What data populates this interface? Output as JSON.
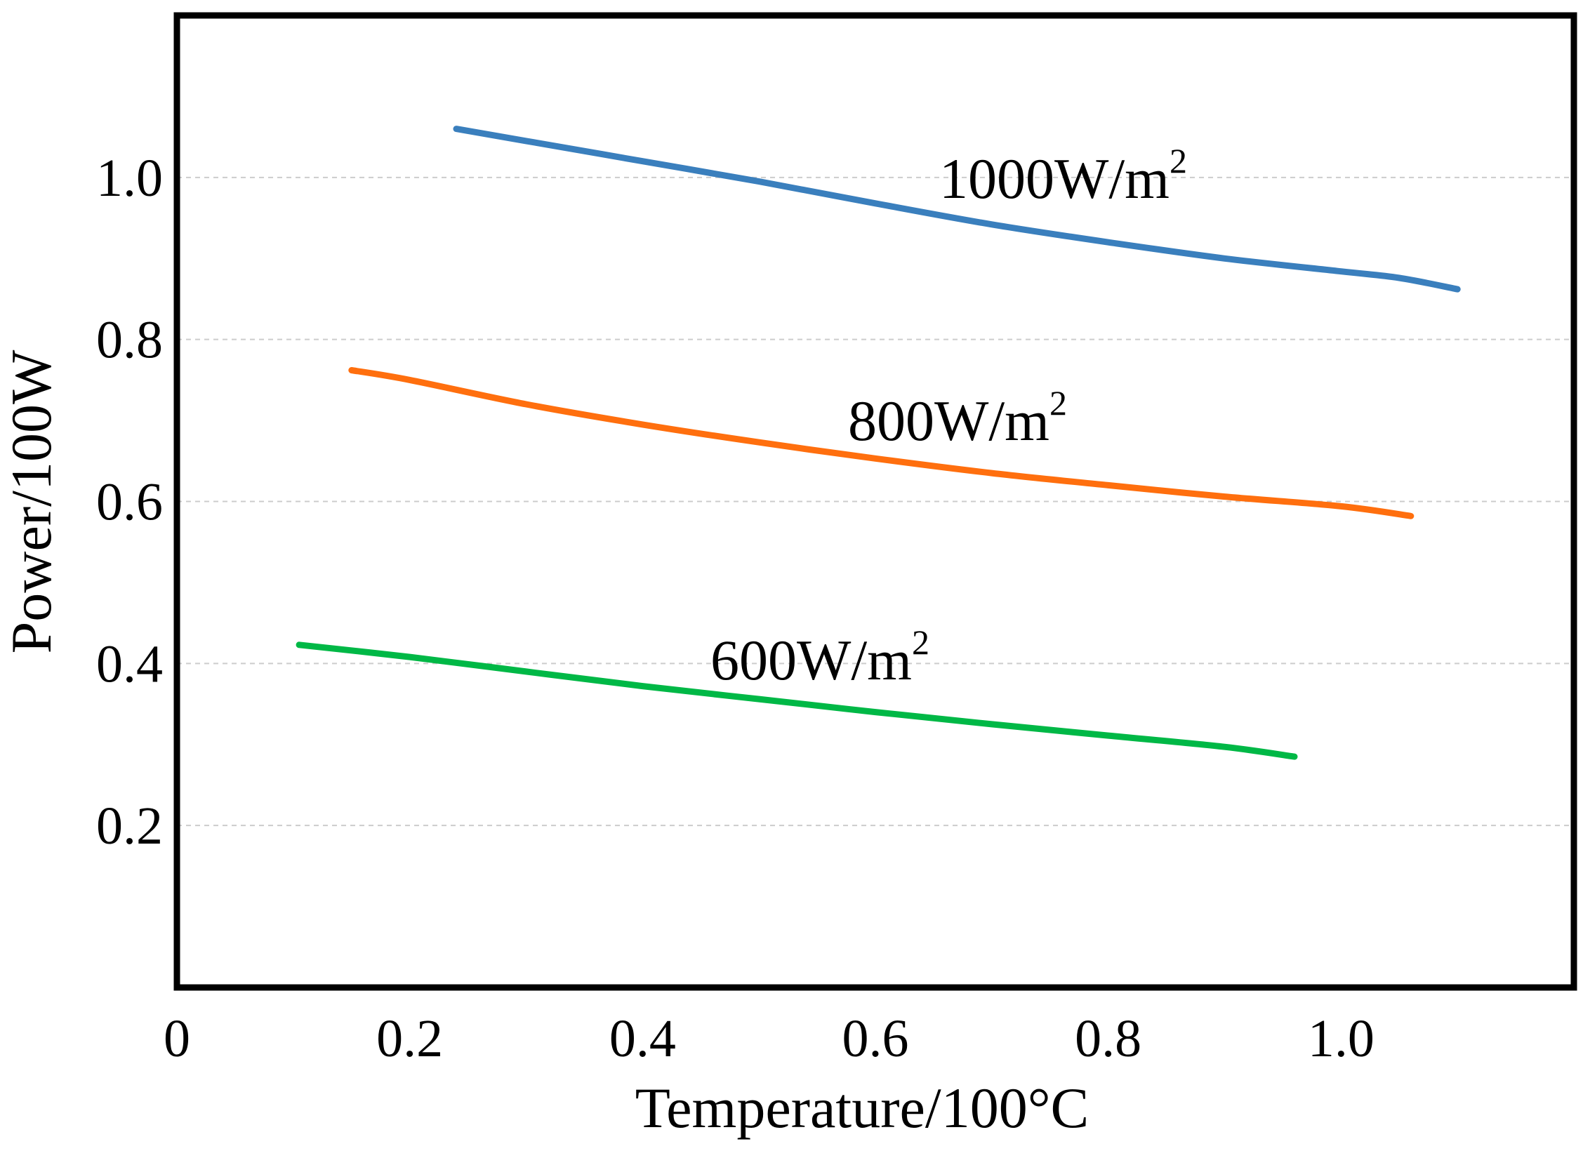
{
  "chart_data": {
    "type": "line",
    "title": "",
    "xlabel": "Temperature/100°C",
    "ylabel": "Power/100W",
    "xlim": [
      0,
      1.2
    ],
    "ylim": [
      0,
      1.2
    ],
    "x_ticks": [
      {
        "value": 0,
        "label": "0"
      },
      {
        "value": 0.2,
        "label": "0.2"
      },
      {
        "value": 0.4,
        "label": "0.4"
      },
      {
        "value": 0.6,
        "label": "0.6"
      },
      {
        "value": 0.8,
        "label": "0.8"
      },
      {
        "value": 1.0,
        "label": "1.0"
      }
    ],
    "y_ticks": [
      {
        "value": 0.2,
        "label": "0.2"
      },
      {
        "value": 0.4,
        "label": "0.4"
      },
      {
        "value": 0.6,
        "label": "0.6"
      },
      {
        "value": 0.8,
        "label": "0.8"
      },
      {
        "value": 1.0,
        "label": "1.0"
      }
    ],
    "grid": "horizontal dashed",
    "legend": "none (inline labels)",
    "series": [
      {
        "name": "1000W/m",
        "name_superscript": "2",
        "color": "#3a7fbd",
        "x": [
          0.24,
          0.3,
          0.4,
          0.5,
          0.6,
          0.7,
          0.8,
          0.9,
          1.0,
          1.05,
          1.1
        ],
        "y": [
          1.06,
          1.045,
          1.02,
          0.995,
          0.968,
          0.942,
          0.92,
          0.9,
          0.884,
          0.876,
          0.862
        ]
      },
      {
        "name": "800W/m",
        "name_superscript": "2",
        "color": "#ff6f0e",
        "x": [
          0.15,
          0.2,
          0.3,
          0.4,
          0.5,
          0.6,
          0.7,
          0.8,
          0.9,
          1.0,
          1.06
        ],
        "y": [
          0.762,
          0.75,
          0.72,
          0.695,
          0.673,
          0.653,
          0.635,
          0.62,
          0.606,
          0.594,
          0.582
        ]
      },
      {
        "name": "600W/m",
        "name_superscript": "2",
        "color": "#00b846",
        "x": [
          0.105,
          0.2,
          0.3,
          0.4,
          0.5,
          0.6,
          0.7,
          0.8,
          0.9,
          0.96
        ],
        "y": [
          0.423,
          0.408,
          0.39,
          0.372,
          0.356,
          0.34,
          0.325,
          0.311,
          0.297,
          0.285
        ]
      }
    ]
  }
}
